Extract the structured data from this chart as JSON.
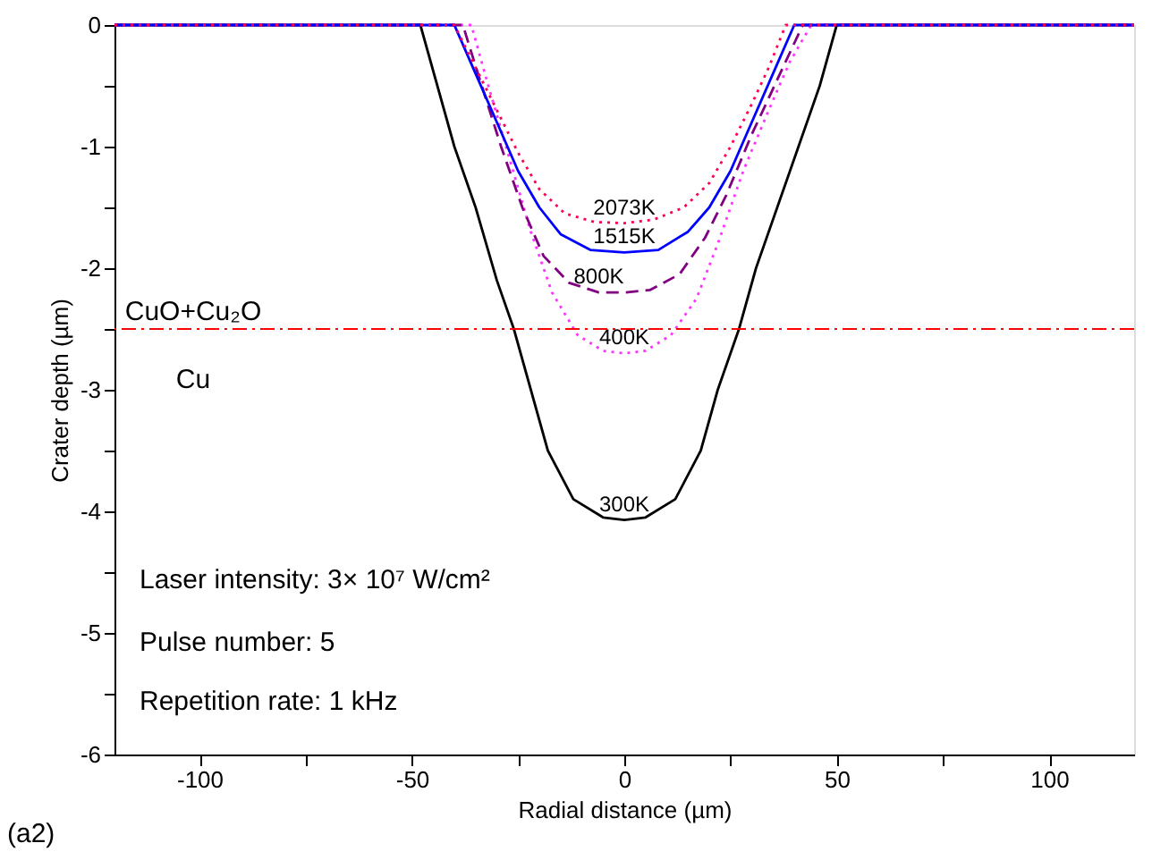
{
  "chart_data": {
    "type": "line",
    "xlabel": "Radial distance (µm)",
    "ylabel": "Crater depth (µm)",
    "xlim": [
      -120,
      120
    ],
    "ylim": [
      -6,
      0
    ],
    "xticks": [
      -100,
      {
        "value": -75,
        "label": null
      },
      -50,
      {
        "value": -25,
        "label": null
      },
      0,
      {
        "value": 25,
        "label": null
      },
      50,
      {
        "value": 75,
        "label": null
      },
      100
    ],
    "yticks": [
      -6,
      {
        "value": -5.5,
        "label": null
      },
      -5,
      {
        "value": -4.5,
        "label": null
      },
      -4,
      {
        "value": -3.5,
        "label": null
      },
      -3,
      {
        "value": -2.5,
        "label": null
      },
      -2,
      {
        "value": -1.5,
        "label": null
      },
      -1,
      {
        "value": -0.5,
        "label": null
      },
      0
    ],
    "grid": false,
    "marker": "none",
    "series": [
      {
        "name": "300K",
        "color": "#000000",
        "line_style": "solid",
        "x": [
          -120,
          -48,
          -44,
          -40,
          -35,
          -30,
          -26,
          -22,
          -18,
          -12,
          -5,
          0,
          5,
          12,
          18,
          22,
          27,
          31,
          36,
          41,
          46,
          50,
          120
        ],
        "values": [
          0,
          0,
          -0.5,
          -1,
          -1.5,
          -2.1,
          -2.5,
          -3,
          -3.5,
          -3.9,
          -4.05,
          -4.07,
          -4.05,
          -3.9,
          -3.5,
          -3,
          -2.5,
          -2,
          -1.5,
          -1,
          -0.5,
          0,
          0
        ]
      },
      {
        "name": "400K",
        "color": "#ff33ff",
        "line_style": "dotted",
        "x": [
          -120,
          -36,
          -32,
          -27,
          -22,
          -17,
          -11,
          -5,
          0,
          5,
          11,
          17,
          22,
          28,
          34,
          39,
          44,
          120
        ],
        "values": [
          0,
          0,
          -0.5,
          -1.1,
          -1.7,
          -2.2,
          -2.55,
          -2.68,
          -2.7,
          -2.68,
          -2.55,
          -2.25,
          -1.8,
          -1.2,
          -0.7,
          -0.3,
          0,
          0
        ]
      },
      {
        "name": "800K",
        "color": "#800080",
        "line_style": "dashed",
        "x": [
          -120,
          -38,
          -34,
          -29,
          -24,
          -19,
          -13,
          -6,
          0,
          6,
          13,
          19,
          24,
          30,
          36,
          42,
          120
        ],
        "values": [
          0,
          0,
          -0.45,
          -1,
          -1.5,
          -1.9,
          -2.12,
          -2.2,
          -2.2,
          -2.18,
          -2.05,
          -1.75,
          -1.4,
          -0.9,
          -0.45,
          0,
          0
        ]
      },
      {
        "name": "1515K",
        "color": "#0000ff",
        "line_style": "solid",
        "x": [
          -120,
          -40,
          -35,
          -30,
          -25,
          -20,
          -15,
          -8,
          0,
          8,
          15,
          20,
          25,
          30,
          35,
          40,
          120
        ],
        "values": [
          0,
          0,
          -0.4,
          -0.8,
          -1.2,
          -1.5,
          -1.72,
          -1.85,
          -1.87,
          -1.85,
          -1.7,
          -1.5,
          -1.2,
          -0.8,
          -0.4,
          0,
          0
        ]
      },
      {
        "name": "2073K",
        "color": "#ff0055",
        "line_style": "dotted",
        "x": [
          -120,
          -40,
          -35,
          -30,
          -25,
          -20,
          -14,
          -7,
          0,
          7,
          14,
          20,
          25,
          30,
          34,
          38,
          120
        ],
        "values": [
          0,
          0,
          -0.35,
          -0.7,
          -1.05,
          -1.35,
          -1.55,
          -1.62,
          -1.63,
          -1.6,
          -1.5,
          -1.3,
          -1,
          -0.65,
          -0.35,
          0,
          0
        ]
      }
    ],
    "ref_lines": [
      {
        "axis": "y",
        "value": -2.5,
        "color": "#ff0000",
        "line_style": "dashdot"
      }
    ],
    "annotations": [
      "CuO+Cu₂O",
      "Cu",
      "Laser intensity: 3× 10⁷ W/cm²",
      "Pulse number: 5",
      "Repetition rate: 1 kHz",
      "(a2)"
    ]
  }
}
